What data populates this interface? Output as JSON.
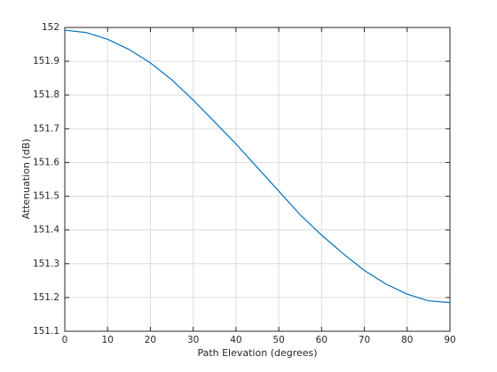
{
  "chart_data": {
    "type": "line",
    "xlabel": "Path Elevation (degrees)",
    "ylabel": "Attenuation (dB)",
    "x": [
      0,
      5,
      10,
      15,
      20,
      25,
      30,
      35,
      40,
      45,
      50,
      55,
      60,
      65,
      70,
      75,
      80,
      85,
      90
    ],
    "series": [
      {
        "color": "#0072bd",
        "values": [
          151.992,
          151.985,
          151.965,
          151.935,
          151.895,
          151.845,
          151.785,
          151.72,
          151.655,
          151.585,
          151.515,
          151.445,
          151.385,
          151.33,
          151.28,
          151.24,
          151.21,
          151.19,
          151.185
        ]
      }
    ],
    "xlim": [
      0,
      90
    ],
    "xticks": [
      0,
      10,
      20,
      30,
      40,
      50,
      60,
      70,
      80,
      90
    ],
    "ylim": [
      151.1,
      152
    ],
    "yticks": [
      151.1,
      151.2,
      151.3,
      151.4,
      151.5,
      151.6,
      151.7,
      151.8,
      151.9,
      152
    ],
    "grid": true
  }
}
